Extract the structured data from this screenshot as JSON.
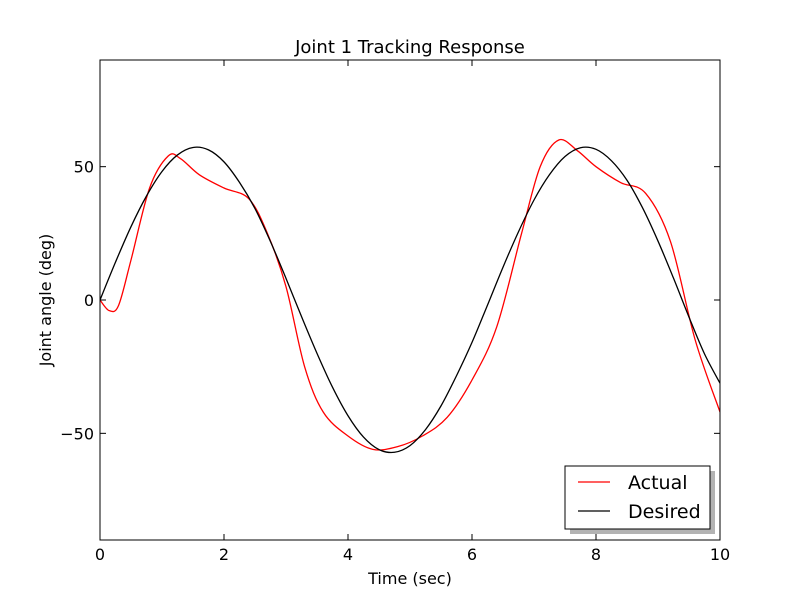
{
  "chart_data": {
    "type": "line",
    "title": "Joint 1 Tracking Response",
    "xlabel": "Time (sec)",
    "ylabel": "Joint angle (deg)",
    "xlim": [
      0,
      10
    ],
    "ylim": [
      -90,
      90
    ],
    "xticks": [
      0,
      2,
      4,
      6,
      8,
      10
    ],
    "xtick_labels": [
      "0",
      "2",
      "4",
      "6",
      "8",
      "10"
    ],
    "yticks": [
      -50,
      0,
      50
    ],
    "ytick_labels": [
      "−50",
      "0",
      "50"
    ],
    "grid": false,
    "legend_position": "lower-right",
    "series": [
      {
        "name": "Actual",
        "color": "#ff0000",
        "x": [
          0,
          0.15,
          0.3,
          0.5,
          0.8,
          1.1,
          1.3,
          1.6,
          2.0,
          2.4,
          2.7,
          3.0,
          3.3,
          3.6,
          4.0,
          4.4,
          4.8,
          5.2,
          5.6,
          6.0,
          6.4,
          6.8,
          7.1,
          7.4,
          7.7,
          8.0,
          8.4,
          8.8,
          9.2,
          9.6,
          10.0
        ],
        "y": [
          0,
          -4,
          -2,
          15,
          42,
          54,
          53,
          47,
          42,
          38,
          25,
          5,
          -25,
          -42,
          -51,
          -56,
          -55,
          -51,
          -44,
          -30,
          -10,
          25,
          50,
          60,
          56,
          50,
          44,
          40,
          22,
          -15,
          -42
        ]
      },
      {
        "name": "Desired",
        "color": "#000000",
        "x": [
          0,
          0.25,
          0.5,
          0.75,
          1.0,
          1.25,
          1.5,
          1.75,
          2.0,
          2.25,
          2.5,
          2.75,
          3.0,
          3.25,
          3.5,
          3.75,
          4.0,
          4.25,
          4.5,
          4.75,
          5.0,
          5.25,
          5.5,
          5.75,
          6.0,
          6.25,
          6.5,
          6.75,
          7.0,
          7.25,
          7.5,
          7.75,
          8.0,
          8.25,
          8.5,
          8.75,
          9.0,
          9.25,
          9.5,
          9.75,
          10.0
        ],
        "y": [
          0,
          14.2,
          27.5,
          39.0,
          48.2,
          54.4,
          57.2,
          56.3,
          51.8,
          44.1,
          34.3,
          21.9,
          8.1,
          -6.2,
          -20.0,
          -32.7,
          -43.4,
          -51.4,
          -56.1,
          -57.1,
          -54.6,
          -48.6,
          -39.7,
          -28.4,
          -15.9,
          -1.9,
          12.3,
          25.6,
          37.5,
          47.0,
          53.8,
          57.1,
          56.5,
          52.2,
          44.9,
          34.6,
          22.1,
          8.2,
          -6.4,
          -20.2,
          -31.2
        ]
      }
    ]
  }
}
